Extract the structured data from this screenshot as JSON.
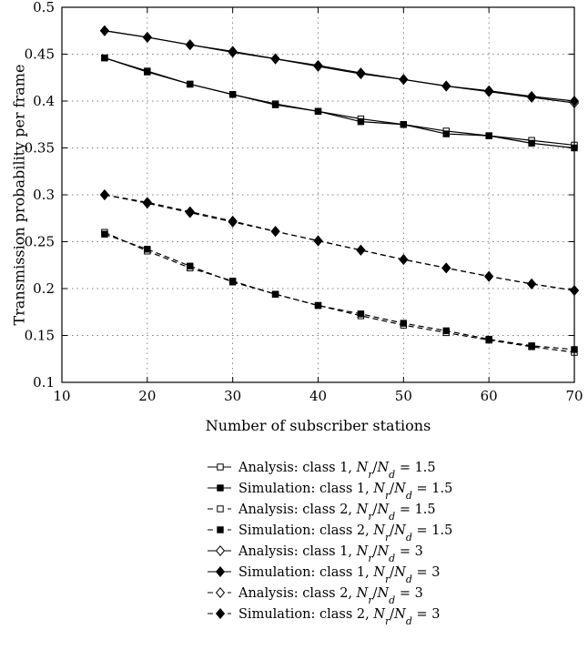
{
  "chart_data": {
    "type": "line",
    "title": "",
    "xlabel": "Number of subscriber stations",
    "ylabel": "Transmission probability per frame",
    "xlim": [
      10,
      70
    ],
    "ylim": [
      0.1,
      0.5
    ],
    "xticks": [
      10,
      20,
      30,
      40,
      50,
      60,
      70
    ],
    "yticks": [
      0.1,
      0.15,
      0.2,
      0.25,
      0.3,
      0.35,
      0.4,
      0.45,
      0.5
    ],
    "grid": true,
    "legend_position": "below",
    "x": [
      15,
      20,
      25,
      30,
      35,
      40,
      45,
      50,
      55,
      60,
      65,
      70
    ],
    "series": [
      {
        "legend_prefix": "Analysis: class 1, ",
        "ratio": "1.5",
        "dash": "solid",
        "marker": "square",
        "filled": false,
        "values": [
          0.446,
          0.432,
          0.418,
          0.407,
          0.397,
          0.389,
          0.381,
          0.375,
          0.368,
          0.363,
          0.358,
          0.353
        ]
      },
      {
        "legend_prefix": "Simulation: class 1, ",
        "ratio": "1.5",
        "dash": "solid",
        "marker": "square",
        "filled": true,
        "values": [
          0.446,
          0.431,
          0.418,
          0.407,
          0.396,
          0.389,
          0.378,
          0.375,
          0.365,
          0.363,
          0.355,
          0.35
        ]
      },
      {
        "legend_prefix": "Analysis: class 2, ",
        "ratio": "1.5",
        "dash": "dashed",
        "marker": "square",
        "filled": false,
        "values": [
          0.26,
          0.24,
          0.222,
          0.208,
          0.194,
          0.182,
          0.171,
          0.161,
          0.153,
          0.145,
          0.138,
          0.132
        ]
      },
      {
        "legend_prefix": "Simulation: class 2, ",
        "ratio": "1.5",
        "dash": "dashed",
        "marker": "square",
        "filled": true,
        "values": [
          0.258,
          0.242,
          0.224,
          0.207,
          0.194,
          0.182,
          0.173,
          0.163,
          0.155,
          0.146,
          0.139,
          0.135
        ]
      },
      {
        "legend_prefix": "Analysis: class 1, ",
        "ratio": "3",
        "dash": "solid",
        "marker": "diamond",
        "filled": false,
        "values": [
          0.475,
          0.468,
          0.46,
          0.452,
          0.445,
          0.437,
          0.429,
          0.423,
          0.416,
          0.41,
          0.404,
          0.398
        ]
      },
      {
        "legend_prefix": "Simulation: class 1, ",
        "ratio": "3",
        "dash": "solid",
        "marker": "diamond",
        "filled": true,
        "values": [
          0.475,
          0.468,
          0.46,
          0.453,
          0.445,
          0.438,
          0.43,
          0.423,
          0.416,
          0.411,
          0.405,
          0.4
        ]
      },
      {
        "legend_prefix": "Analysis: class 2, ",
        "ratio": "3",
        "dash": "dashed",
        "marker": "diamond",
        "filled": false,
        "values": [
          0.3,
          0.291,
          0.281,
          0.271,
          0.261,
          0.251,
          0.241,
          0.231,
          0.222,
          0.213,
          0.205,
          0.198
        ]
      },
      {
        "legend_prefix": "Simulation: class 2, ",
        "ratio": "3",
        "dash": "dashed",
        "marker": "diamond",
        "filled": true,
        "values": [
          0.3,
          0.292,
          0.282,
          0.272,
          0.261,
          0.251,
          0.241,
          0.231,
          0.222,
          0.213,
          0.205,
          0.198
        ]
      }
    ]
  },
  "legend": {
    "ratio_lhs": "N",
    "sub_r": "r",
    "sub_d": "d",
    "equals": " = "
  }
}
